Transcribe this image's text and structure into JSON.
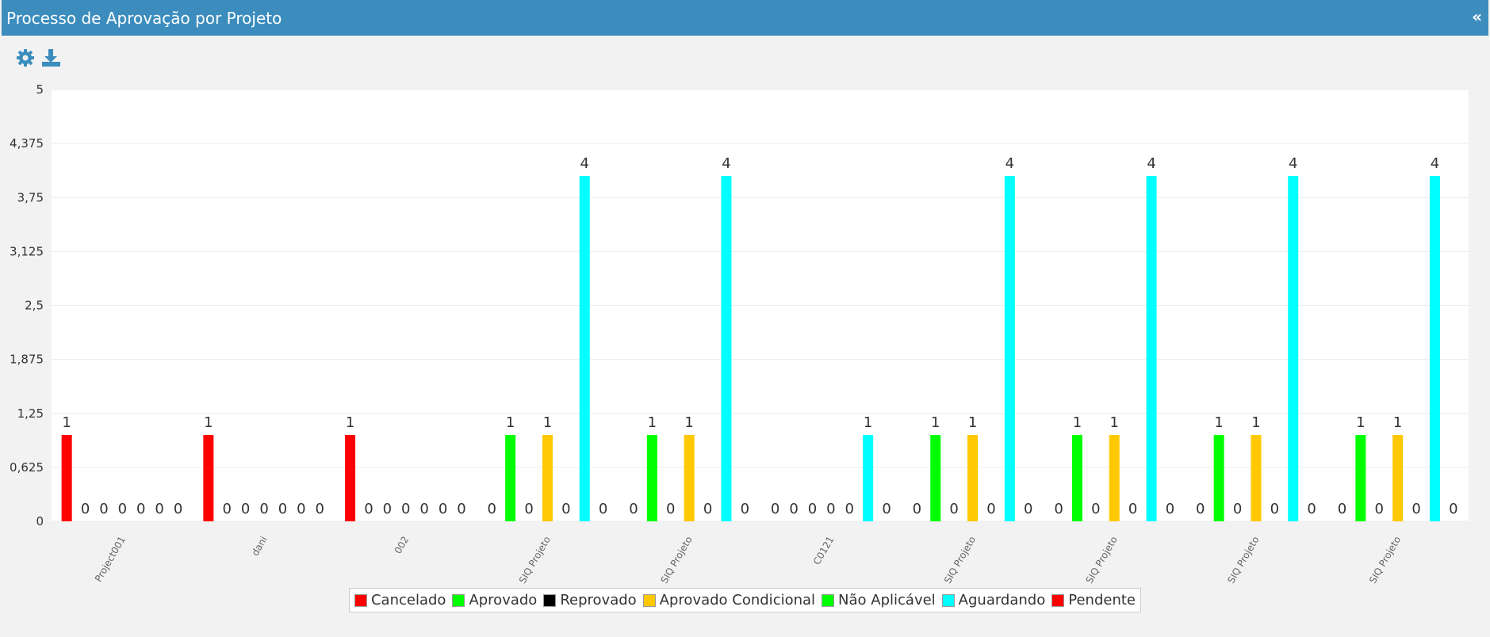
{
  "panel": {
    "title": "Processo de Aprovação por Projeto",
    "toggle": "«"
  },
  "chart_data": {
    "type": "bar",
    "categories": [
      "Project001",
      "dani",
      "002",
      "SIQ Projeto",
      "SIQ Projeto",
      "C0121",
      "SIQ Projeto",
      "SIQ Projeto",
      "SIQ Projeto",
      "SIQ Projeto"
    ],
    "series": [
      {
        "name": "Cancelado",
        "color": "#ff0000",
        "values": [
          1,
          1,
          1,
          0,
          0,
          0,
          0,
          0,
          0,
          0
        ]
      },
      {
        "name": "Aprovado",
        "color": "#00ff00",
        "values": [
          0,
          0,
          0,
          1,
          1,
          0,
          1,
          1,
          1,
          1
        ]
      },
      {
        "name": "Reprovado",
        "color": "#000000",
        "values": [
          0,
          0,
          0,
          0,
          0,
          0,
          0,
          0,
          0,
          0
        ]
      },
      {
        "name": "Aprovado Condicional",
        "color": "#ffc800",
        "values": [
          0,
          0,
          0,
          1,
          1,
          0,
          1,
          1,
          1,
          1
        ]
      },
      {
        "name": "Não Aplicável",
        "color": "#00ff00",
        "values": [
          0,
          0,
          0,
          0,
          0,
          0,
          0,
          0,
          0,
          0
        ]
      },
      {
        "name": "Aguardando",
        "color": "#00ffff",
        "values": [
          0,
          0,
          0,
          4,
          4,
          1,
          4,
          4,
          4,
          4
        ]
      },
      {
        "name": "Pendente",
        "color": "#ff0000",
        "values": [
          0,
          0,
          0,
          0,
          0,
          0,
          0,
          0,
          0,
          0
        ]
      }
    ],
    "ylim": [
      0,
      5
    ],
    "yticks": [
      0,
      {
        "value": 0.625,
        "label": "0,625"
      },
      {
        "value": 1.25,
        "label": "1,25"
      },
      {
        "value": 1.875,
        "label": "1,875"
      },
      {
        "value": 2.5,
        "label": "2,5"
      },
      {
        "value": 3.125,
        "label": "3,125"
      },
      {
        "value": 3.75,
        "label": "3,75"
      },
      {
        "value": 4.375,
        "label": "4,375"
      },
      5
    ],
    "grid": true,
    "legend": "bottom"
  }
}
